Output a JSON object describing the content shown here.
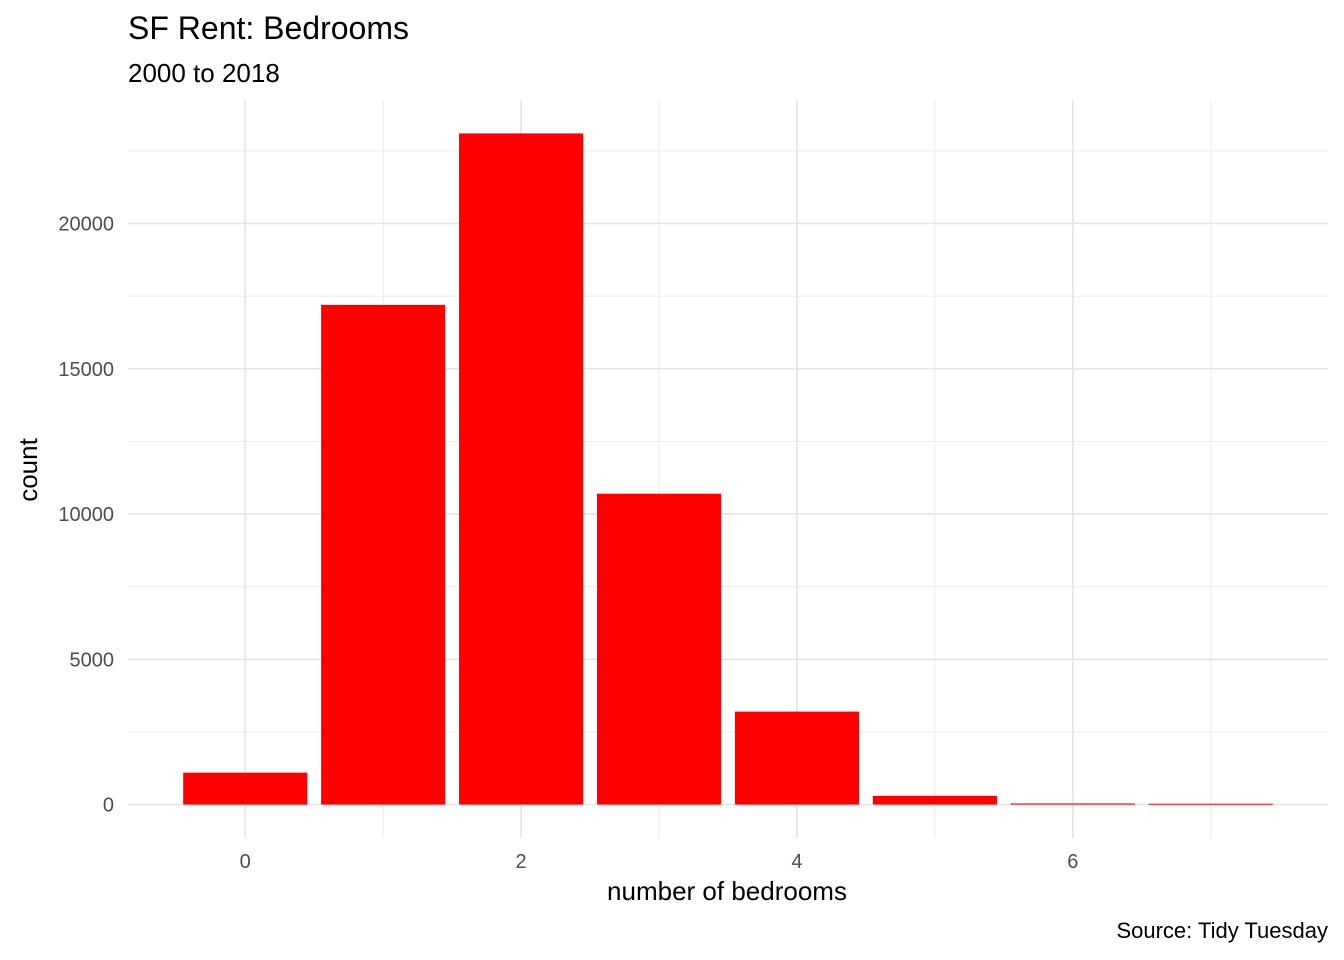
{
  "chart_data": {
    "type": "bar",
    "title": "SF Rent: Bedrooms",
    "subtitle": "2000 to 2018",
    "caption": "Source: Tidy Tuesday",
    "xlabel": "number of bedrooms",
    "ylabel": "count",
    "categories": [
      0,
      1,
      2,
      3,
      4,
      5,
      6,
      7
    ],
    "values": [
      1100,
      17200,
      23100,
      10700,
      3200,
      300,
      40,
      30
    ],
    "x_ticks": [
      0,
      2,
      4,
      6
    ],
    "y_ticks": [
      0,
      5000,
      10000,
      15000,
      20000
    ],
    "xlim": [
      -0.85,
      7.85
    ],
    "ylim": [
      -1150,
      24250
    ],
    "bar_color": "#ff0000",
    "grid": true,
    "legend": "none"
  }
}
